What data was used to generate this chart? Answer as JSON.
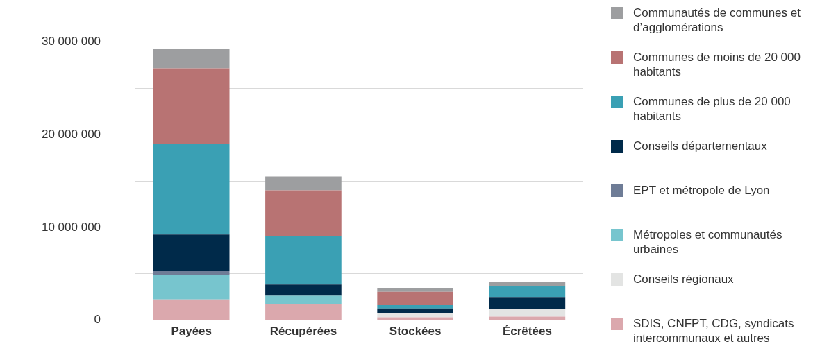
{
  "chart_data": {
    "type": "bar",
    "stacked": true,
    "categories": [
      "Payées",
      "Récupérées",
      "Stockées",
      "Écrêtées"
    ],
    "series": [
      {
        "name": "SDIS, CNFPT, CDG, syndicats intercommunaux et autres",
        "color": "#dba8ad",
        "values": [
          2240000,
          1750000,
          320000,
          390000
        ]
      },
      {
        "name": "Conseils régionaux",
        "color": "#e3e4e3",
        "values": [
          0,
          0,
          480000,
          820000
        ]
      },
      {
        "name": "Métropoles et communautés urbaines",
        "color": "#77c5ce",
        "values": [
          2630000,
          880000,
          0,
          0
        ]
      },
      {
        "name": "EPT et métropole de Lyon",
        "color": "#6e7c96",
        "values": [
          410000,
          0,
          0,
          0
        ]
      },
      {
        "name": "Conseils départementaux",
        "color": "#002a4a",
        "values": [
          3950000,
          1220000,
          480000,
          1290000
        ]
      },
      {
        "name": "Communes de plus de 20 000 habitants",
        "color": "#3aa0b4",
        "values": [
          9800000,
          5240000,
          340000,
          1160000
        ]
      },
      {
        "name": "Communes de moins de 20 000 habitants",
        "color": "#b87373",
        "values": [
          8100000,
          4900000,
          1450000,
          0
        ]
      },
      {
        "name": "Communautés de communes et d’agglomérations",
        "color": "#9d9ea0",
        "values": [
          2100000,
          1500000,
          390000,
          480000
        ]
      }
    ],
    "ylim": [
      0,
      30000000
    ],
    "yticks": [
      {
        "value": 0,
        "label": "0"
      },
      {
        "value": 5000000,
        "label": null
      },
      {
        "value": 10000000,
        "label": "10 000 000"
      },
      {
        "value": 15000000,
        "label": null
      },
      {
        "value": 20000000,
        "label": "20 000 000"
      },
      {
        "value": 25000000,
        "label": null
      },
      {
        "value": 30000000,
        "label": "30 000 000"
      }
    ],
    "grid": "y",
    "legend": "right"
  }
}
